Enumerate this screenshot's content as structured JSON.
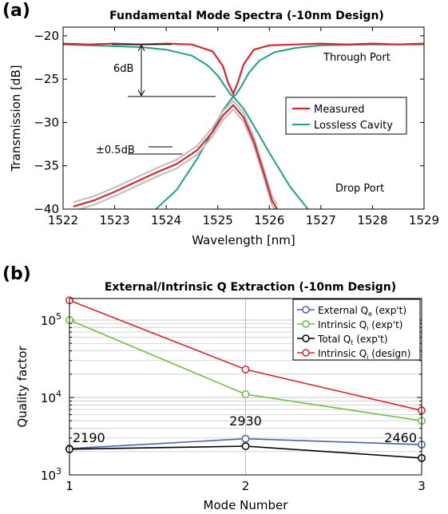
{
  "chart_data": [
    {
      "panel": "(a)",
      "type": "line",
      "title": "Fundamental Mode Spectra (-10nm Design)",
      "xlabel": "Wavelength [nm]",
      "ylabel": "Transmission [dB]",
      "xlim": [
        1522,
        1529
      ],
      "ylim": [
        -40,
        -19
      ],
      "xticks": [
        1522,
        1523,
        1524,
        1525,
        1526,
        1527,
        1528,
        1529
      ],
      "yticks": [
        -20,
        -25,
        -30,
        -35,
        -40
      ],
      "legend": {
        "placement": "right",
        "entries": [
          "Measured",
          "Lossless Cavity"
        ]
      },
      "colors": {
        "measured": "#d9262e",
        "lossless": "#1aa38a",
        "uncertainty": "#bdbdbd"
      },
      "annotations": {
        "six_db": "6dB",
        "pm": "±0.5dB",
        "through_label": "Through Port",
        "drop_label": "Drop Port"
      },
      "series": [
        {
          "name": "Measured",
          "port": "through",
          "x": [
            1522.0,
            1522.5,
            1523.0,
            1523.5,
            1524.0,
            1524.5,
            1524.9,
            1525.1,
            1525.2,
            1525.3,
            1525.4,
            1525.5,
            1525.7,
            1526.0,
            1526.5,
            1527.0,
            1527.5,
            1528.0,
            1528.5,
            1529.0
          ],
          "y": [
            -20.9,
            -21.0,
            -20.9,
            -21.0,
            -20.9,
            -21.0,
            -21.8,
            -23.5,
            -25.4,
            -26.7,
            -25.2,
            -23.3,
            -21.6,
            -21.1,
            -21.0,
            -20.9,
            -21.0,
            -20.9,
            -21.0,
            -20.9
          ]
        },
        {
          "name": "Lossless Cavity",
          "port": "through",
          "x": [
            1522.0,
            1523.0,
            1523.5,
            1524.0,
            1524.5,
            1524.8,
            1525.0,
            1525.15,
            1525.25,
            1525.3,
            1525.35,
            1525.45,
            1525.6,
            1525.8,
            1526.1,
            1526.5,
            1527.0,
            1528.0,
            1529.0
          ],
          "y": [
            -21.0,
            -21.2,
            -21.3,
            -21.6,
            -22.3,
            -23.4,
            -24.6,
            -25.9,
            -26.8,
            -27.0,
            -26.8,
            -25.9,
            -24.3,
            -22.9,
            -21.9,
            -21.4,
            -21.1,
            -21.0,
            -21.0
          ]
        },
        {
          "name": "Measured",
          "port": "drop",
          "x": [
            1522.2,
            1522.6,
            1523.0,
            1523.4,
            1523.8,
            1524.2,
            1524.6,
            1524.9,
            1525.1,
            1525.3,
            1525.5,
            1525.7,
            1525.9,
            1526.05,
            1526.15
          ],
          "y": [
            -39.7,
            -39.0,
            -38.0,
            -36.9,
            -35.8,
            -34.8,
            -33.2,
            -31.1,
            -29.2,
            -28.0,
            -29.4,
            -32.2,
            -36.0,
            -39.0,
            -40.0
          ]
        },
        {
          "name": "Lossless Cavity",
          "port": "drop",
          "x": [
            1523.8,
            1524.2,
            1524.6,
            1524.9,
            1525.1,
            1525.3,
            1525.5,
            1525.7,
            1526.0,
            1526.4,
            1526.75
          ],
          "y": [
            -40.0,
            -37.8,
            -34.2,
            -31.0,
            -28.6,
            -27.0,
            -28.4,
            -30.4,
            -33.5,
            -37.4,
            -40.0
          ]
        }
      ]
    },
    {
      "panel": "(b)",
      "type": "line",
      "title": "External/Intrinsic Q Extraction (-10nm Design)",
      "xlabel": "Mode Number",
      "ylabel": "Quality factor",
      "xlim": [
        1,
        3
      ],
      "ylim": [
        1000,
        190000
      ],
      "yscale": "log",
      "xticks": [
        "1",
        "2",
        "3"
      ],
      "grid": true,
      "legend": {
        "placement": "top-right"
      },
      "data_labels": [
        "2190",
        "2930",
        "2460"
      ],
      "series": [
        {
          "name": "External Q",
          "sub": "e",
          "tag": "(exp't)",
          "color": "#4a5fb0",
          "x": [
            1,
            2,
            3
          ],
          "y": [
            2190,
            2930,
            2460
          ]
        },
        {
          "name": "Intrinsic Q",
          "sub": "i",
          "tag": "(exp't)",
          "color": "#6fbf3f",
          "x": [
            1,
            2,
            3
          ],
          "y": [
            100000,
            11000,
            5000
          ]
        },
        {
          "name": "Total Q",
          "sub": "t",
          "tag": "(exp't)",
          "color": "#000000",
          "x": [
            1,
            2,
            3
          ],
          "y": [
            2150,
            2350,
            1650
          ]
        },
        {
          "name": "Intrinsic Q",
          "sub": "i",
          "tag": "(design)",
          "color": "#d9262e",
          "x": [
            1,
            2,
            3
          ],
          "y": [
            180000,
            23000,
            6800
          ]
        }
      ]
    }
  ]
}
